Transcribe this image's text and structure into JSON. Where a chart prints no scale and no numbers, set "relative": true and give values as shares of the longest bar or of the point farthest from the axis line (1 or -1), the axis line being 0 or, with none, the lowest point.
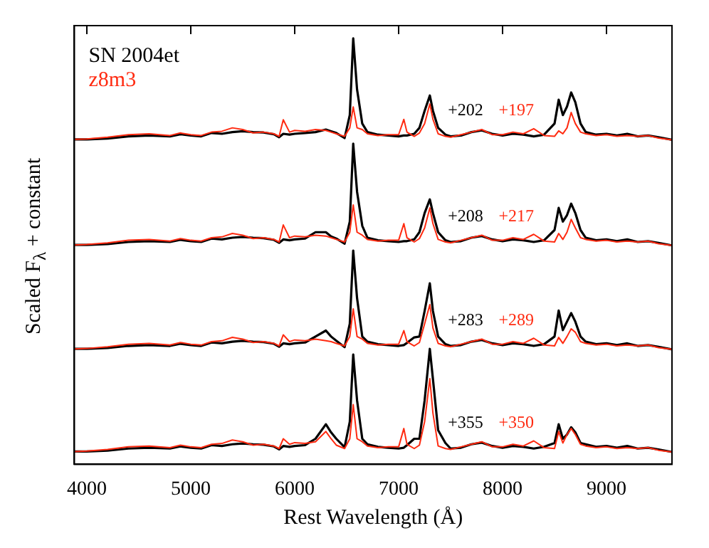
{
  "chart_data": {
    "type": "line",
    "xlabel": "Rest Wavelength (Å)",
    "ylabel": "Scaled F$_{λ}$ + constant",
    "relative": true,
    "legend": "top left",
    "marker": "none",
    "line_style": "solid",
    "xlim": [
      3880,
      9630
    ],
    "xticks": [
      4000,
      5000,
      6000,
      7000,
      8000,
      9000
    ],
    "x": [
      3880,
      4000,
      4200,
      4400,
      4600,
      4800,
      4900,
      5000,
      5100,
      5200,
      5300,
      5400,
      5500,
      5600,
      5700,
      5800,
      5850,
      5890,
      5950,
      6000,
      6100,
      6200,
      6300,
      6350,
      6400,
      6480,
      6530,
      6563,
      6600,
      6650,
      6700,
      6800,
      6900,
      7000,
      7050,
      7080,
      7150,
      7200,
      7250,
      7300,
      7330,
      7380,
      7450,
      7500,
      7600,
      7700,
      7800,
      7900,
      8000,
      8100,
      8200,
      8300,
      8400,
      8500,
      8540,
      8580,
      8620,
      8660,
      8700,
      8750,
      8800,
      8900,
      9000,
      9100,
      9200,
      9300,
      9400,
      9500,
      9630
    ],
    "series": [
      {
        "name": "SN 2004et",
        "color": "#000000",
        "values": [
          0.763,
          0.763,
          0.765,
          0.77,
          0.772,
          0.77,
          0.775,
          0.772,
          0.77,
          0.778,
          0.776,
          0.78,
          0.782,
          0.78,
          0.779,
          0.775,
          0.768,
          0.776,
          0.774,
          0.776,
          0.778,
          0.78,
          0.786,
          0.782,
          0.778,
          0.766,
          0.82,
          1.0,
          0.88,
          0.8,
          0.78,
          0.774,
          0.772,
          0.77,
          0.772,
          0.772,
          0.776,
          0.79,
          0.83,
          0.866,
          0.83,
          0.79,
          0.774,
          0.77,
          0.772,
          0.78,
          0.784,
          0.776,
          0.772,
          0.776,
          0.774,
          0.77,
          0.774,
          0.8,
          0.856,
          0.82,
          0.84,
          0.873,
          0.85,
          0.8,
          0.78,
          0.774,
          0.776,
          0.772,
          0.776,
          0.77,
          0.772,
          0.768,
          0.762
        ]
      },
      {
        "name": "z8m3",
        "color": "#ff2a10",
        "values": [
          0.763,
          0.764,
          0.768,
          0.774,
          0.776,
          0.772,
          0.778,
          0.774,
          0.772,
          0.78,
          0.782,
          0.79,
          0.786,
          0.778,
          0.78,
          0.776,
          0.77,
          0.809,
          0.78,
          0.784,
          0.782,
          0.786,
          0.784,
          0.78,
          0.776,
          0.77,
          0.79,
          0.839,
          0.79,
          0.786,
          0.776,
          0.772,
          0.774,
          0.774,
          0.81,
          0.78,
          0.77,
          0.778,
          0.8,
          0.846,
          0.81,
          0.776,
          0.77,
          0.768,
          0.774,
          0.78,
          0.786,
          0.774,
          0.774,
          0.78,
          0.776,
          0.788,
          0.772,
          0.77,
          0.783,
          0.776,
          0.79,
          0.826,
          0.8,
          0.78,
          0.776,
          0.772,
          0.774,
          0.77,
          0.772,
          0.77,
          0.772,
          0.766,
          0.762
        ]
      },
      {
        "color": "#000000",
        "values": [
          0.515,
          0.515,
          0.517,
          0.522,
          0.524,
          0.522,
          0.527,
          0.524,
          0.522,
          0.53,
          0.528,
          0.532,
          0.534,
          0.532,
          0.531,
          0.527,
          0.52,
          0.528,
          0.526,
          0.528,
          0.53,
          0.545,
          0.545,
          0.535,
          0.53,
          0.518,
          0.57,
          0.753,
          0.64,
          0.56,
          0.532,
          0.526,
          0.524,
          0.522,
          0.524,
          0.524,
          0.528,
          0.545,
          0.59,
          0.622,
          0.59,
          0.545,
          0.526,
          0.522,
          0.524,
          0.532,
          0.536,
          0.528,
          0.524,
          0.528,
          0.526,
          0.522,
          0.526,
          0.55,
          0.602,
          0.57,
          0.585,
          0.612,
          0.59,
          0.55,
          0.532,
          0.526,
          0.528,
          0.524,
          0.528,
          0.522,
          0.524,
          0.52,
          0.514
        ]
      },
      {
        "color": "#ff2a10",
        "values": [
          0.515,
          0.516,
          0.52,
          0.526,
          0.528,
          0.524,
          0.53,
          0.526,
          0.524,
          0.532,
          0.534,
          0.542,
          0.538,
          0.53,
          0.532,
          0.528,
          0.522,
          0.562,
          0.532,
          0.536,
          0.534,
          0.538,
          0.536,
          0.532,
          0.528,
          0.522,
          0.545,
          0.609,
          0.545,
          0.538,
          0.528,
          0.524,
          0.526,
          0.526,
          0.565,
          0.532,
          0.522,
          0.53,
          0.555,
          0.602,
          0.565,
          0.528,
          0.522,
          0.52,
          0.526,
          0.532,
          0.538,
          0.526,
          0.526,
          0.532,
          0.528,
          0.54,
          0.524,
          0.522,
          0.542,
          0.528,
          0.545,
          0.575,
          0.555,
          0.532,
          0.528,
          0.524,
          0.526,
          0.522,
          0.524,
          0.522,
          0.524,
          0.518,
          0.514
        ]
      },
      {
        "color": "#000000",
        "values": [
          0.271,
          0.271,
          0.273,
          0.278,
          0.28,
          0.278,
          0.283,
          0.28,
          0.278,
          0.286,
          0.284,
          0.288,
          0.29,
          0.288,
          0.287,
          0.283,
          0.276,
          0.284,
          0.282,
          0.284,
          0.286,
          0.3,
          0.314,
          0.3,
          0.29,
          0.275,
          0.33,
          0.502,
          0.39,
          0.3,
          0.288,
          0.282,
          0.28,
          0.278,
          0.28,
          0.285,
          0.298,
          0.3,
          0.36,
          0.425,
          0.36,
          0.3,
          0.282,
          0.278,
          0.28,
          0.288,
          0.292,
          0.284,
          0.28,
          0.284,
          0.282,
          0.278,
          0.282,
          0.3,
          0.361,
          0.315,
          0.335,
          0.355,
          0.335,
          0.3,
          0.288,
          0.282,
          0.284,
          0.28,
          0.284,
          0.278,
          0.28,
          0.276,
          0.27
        ]
      },
      {
        "color": "#ff2a10",
        "values": [
          0.271,
          0.272,
          0.276,
          0.282,
          0.284,
          0.28,
          0.286,
          0.282,
          0.28,
          0.288,
          0.29,
          0.298,
          0.294,
          0.286,
          0.288,
          0.284,
          0.278,
          0.304,
          0.288,
          0.292,
          0.29,
          0.294,
          0.29,
          0.288,
          0.284,
          0.278,
          0.3,
          0.365,
          0.3,
          0.294,
          0.284,
          0.28,
          0.282,
          0.282,
          0.314,
          0.288,
          0.278,
          0.286,
          0.33,
          0.375,
          0.32,
          0.284,
          0.278,
          0.276,
          0.282,
          0.288,
          0.294,
          0.282,
          0.282,
          0.288,
          0.284,
          0.296,
          0.28,
          0.278,
          0.298,
          0.284,
          0.3,
          0.318,
          0.31,
          0.288,
          0.284,
          0.28,
          0.282,
          0.278,
          0.28,
          0.278,
          0.28,
          0.274,
          0.27
        ]
      },
      {
        "color": "#000000",
        "values": [
          0.03,
          0.03,
          0.032,
          0.037,
          0.039,
          0.037,
          0.042,
          0.039,
          0.037,
          0.045,
          0.043,
          0.047,
          0.049,
          0.047,
          0.046,
          0.042,
          0.035,
          0.043,
          0.041,
          0.043,
          0.045,
          0.06,
          0.094,
          0.075,
          0.06,
          0.04,
          0.1,
          0.258,
          0.15,
          0.06,
          0.047,
          0.041,
          0.039,
          0.037,
          0.039,
          0.045,
          0.06,
          0.06,
          0.15,
          0.271,
          0.2,
          0.08,
          0.05,
          0.037,
          0.039,
          0.047,
          0.051,
          0.043,
          0.039,
          0.043,
          0.041,
          0.037,
          0.041,
          0.05,
          0.094,
          0.06,
          0.07,
          0.087,
          0.075,
          0.05,
          0.047,
          0.041,
          0.043,
          0.039,
          0.043,
          0.037,
          0.039,
          0.035,
          0.029
        ]
      },
      {
        "color": "#ff2a10",
        "values": [
          0.03,
          0.031,
          0.035,
          0.041,
          0.043,
          0.039,
          0.045,
          0.041,
          0.039,
          0.047,
          0.049,
          0.057,
          0.053,
          0.045,
          0.047,
          0.043,
          0.037,
          0.06,
          0.047,
          0.051,
          0.049,
          0.053,
          0.077,
          0.06,
          0.045,
          0.037,
          0.06,
          0.14,
          0.06,
          0.053,
          0.043,
          0.039,
          0.041,
          0.041,
          0.084,
          0.047,
          0.037,
          0.045,
          0.1,
          0.201,
          0.12,
          0.043,
          0.037,
          0.035,
          0.041,
          0.047,
          0.053,
          0.041,
          0.041,
          0.047,
          0.043,
          0.055,
          0.039,
          0.037,
          0.077,
          0.05,
          0.07,
          0.084,
          0.07,
          0.047,
          0.043,
          0.039,
          0.041,
          0.037,
          0.039,
          0.037,
          0.039,
          0.033,
          0.029
        ]
      }
    ],
    "annotations": [
      "+202",
      "+197",
      "+208",
      "+217",
      "+283",
      "+289",
      "+355",
      "+350"
    ]
  }
}
